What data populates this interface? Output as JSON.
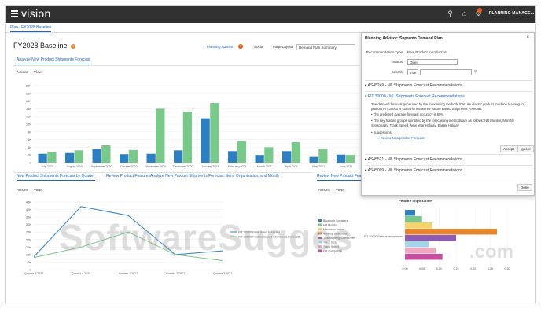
{
  "app": {
    "brand": "vision",
    "user": "PLANNING MANAGE...",
    "tab": "Plan / FY2028 Baseline"
  },
  "page": {
    "title": "FY2028 Baseline",
    "planning_advisor": "Planning Advisor",
    "planning_advisor_count": "3",
    "social": "Social",
    "page_layout_label": "Page Layout",
    "page_layout_value": "Demand Plan Summary"
  },
  "top_panel": {
    "tab": "Analyze New Product Shipments Forecast",
    "actions": "Actions",
    "view": "View"
  },
  "bottom_left": {
    "tabs": [
      "New Product Shipments Forecast by Quarter",
      "Review Product Features",
      "Analyze New Product Shipments Forecast: Item, Organization, and Month"
    ],
    "actions": "Actions",
    "view": "View"
  },
  "bottom_right": {
    "tab": "Review New Product Feature",
    "actions": "Actions",
    "view": "View",
    "chart_title": "Feature Importance"
  },
  "dialog": {
    "title": "Planning Advisor: Supremo Demand Plan",
    "close": "×",
    "rec_type_label": "Recommendation Type",
    "rec_type_value": "New Product Introduction",
    "status_label": "Status",
    "status_value": "Open",
    "search_label": "Search",
    "search_value": "Title",
    "recs": [
      "AS45249 - ML Shipments Forecast Recommendations",
      "FIT 30000 - ML Shipments Forecast Recommendations",
      "AS45521 - ML Shipments Forecast Recommendations",
      "AS45099 - ML Shipments Forecast Recommendations"
    ],
    "rec_desc": "The demand forecast generated by the forecasting methods that use classic product machine learning for product FIT 30000 is stored in measure Feature Based Shipments Forecast.",
    "bullet1": "The predicted average forecast accuracy is 60%.",
    "bullet2": "The key feature groups identified by the forecasting methods are as follows: HR Monitor, Monthly Seasonality, Track Speed, New Year Holiday, Easter Holiday",
    "suggestions_label": "Suggestions",
    "suggestion_link": "Review New product Forecast",
    "accept": "Accept",
    "ignore": "Ignore",
    "done": "Done"
  },
  "watermark": {
    "text": "SoftwareSugges",
    "suffix": ".com"
  },
  "chart_data": [
    {
      "type": "bar",
      "title": "",
      "categories": [
        "July 2020",
        "August 2020",
        "September 2020",
        "October 2020",
        "November 2020",
        "December 2020",
        "January 2021",
        "February 2021",
        "March 2021",
        "April 2021",
        "May 2021",
        "June 2021"
      ],
      "y_ticks": [
        "0",
        "2K",
        "4K",
        "6K",
        "8K",
        "10K",
        "12K",
        "14K",
        "16K",
        "18K",
        "20K"
      ],
      "ylim": [
        0,
        20000
      ],
      "series": [
        {
          "values": [
            2300,
            2500,
            3500,
            2200,
            2300,
            3200,
            11500,
            3000,
            2000,
            3000,
            1500,
            2100
          ],
          "color": "#2d7fc1"
        },
        {
          "values": [
            2700,
            3200,
            4500,
            3300,
            14000,
            13200,
            15500,
            5600,
            4000,
            5300,
            3600,
            2000
          ],
          "color": "#79c98b"
        }
      ]
    },
    {
      "type": "line",
      "title": "",
      "categories": [
        "Quarter 3 2020",
        "Quarter 4 2020",
        "Quarter 1 2021",
        "Quarter 2 2021",
        "Quarter 3 2021"
      ],
      "y_ticks": [
        "0",
        "5K",
        "10K",
        "15K",
        "20K",
        "25K",
        "30K",
        "35K",
        "40K",
        "45K"
      ],
      "ylim": [
        0,
        45000
      ],
      "series": [
        {
          "name": "FIT 30000 Final Sales Forecast",
          "values": [
            8500,
            42000,
            36000,
            10000,
            12500
          ],
          "color": "#2d7fc1"
        },
        {
          "name": "FIT 30000 Feature Based Shipments Forecast",
          "values": [
            8000,
            15000,
            25000,
            10000,
            6000
          ],
          "color": "#79c98b"
        }
      ]
    },
    {
      "type": "bar",
      "title": "Feature Importance",
      "categories": [
        "FIT 30000 Feature Importance"
      ],
      "x_ticks": [
        "0.00",
        "0.05",
        "0.10",
        "0.15",
        "0.20",
        "0.25",
        "0.30"
      ],
      "xlim": [
        0,
        0.3
      ],
      "series": [
        {
          "name": "Bluetooth Speakers",
          "values": [
            0.03
          ],
          "color": "#2d7fc1"
        },
        {
          "name": "HR Monitor",
          "values": [
            0.05
          ],
          "color": "#79c98b"
        },
        {
          "name": "Maximum Incline",
          "values": [
            0.08
          ],
          "color": "#f5d36b"
        },
        {
          "name": "Monthly Seasonality",
          "values": [
            0.27
          ],
          "color": "#e8842a"
        },
        {
          "name": "Thanksgiving Sales Event",
          "values": [
            0.15
          ],
          "color": "#8e5bb5"
        },
        {
          "name": "Track Size",
          "values": [
            0.07
          ],
          "color": "#a4d4ea"
        },
        {
          "name": "Track Speed",
          "values": [
            0.09
          ],
          "color": "#f0a8c0"
        },
        {
          "name": "FIT Compatible",
          "values": [
            0.11
          ],
          "color": "#c44ea0"
        }
      ]
    }
  ]
}
